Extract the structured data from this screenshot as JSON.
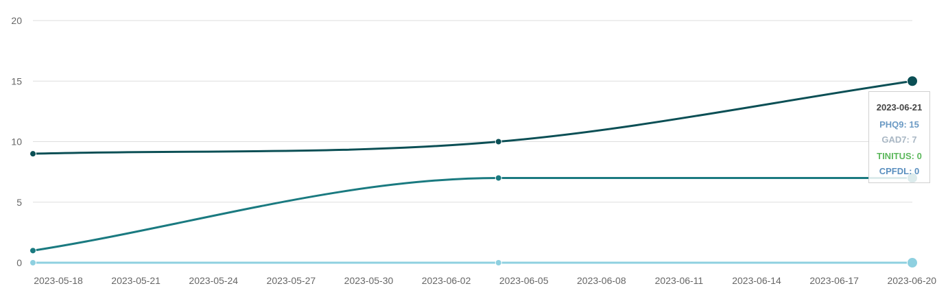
{
  "chart_data": {
    "type": "line",
    "x_ticks": [
      "2023-05-18",
      "2023-05-21",
      "2023-05-24",
      "2023-05-27",
      "2023-05-30",
      "2023-06-02",
      "2023-06-05",
      "2023-06-08",
      "2023-06-11",
      "2023-06-14",
      "2023-06-17",
      "2023-06-20"
    ],
    "y_ticks": [
      "0",
      "5",
      "10",
      "15",
      "20"
    ],
    "ylim": [
      0,
      20
    ],
    "xlim": [
      "2023-05-18",
      "2023-06-21"
    ],
    "grid": true,
    "x": [
      "2023-05-18",
      "2023-06-05",
      "2023-06-21"
    ],
    "series": [
      {
        "name": "PHQ9",
        "values": [
          9,
          10,
          15
        ],
        "color": "#0b4f55"
      },
      {
        "name": "GAD7",
        "values": [
          1,
          7,
          7
        ],
        "color": "#1a7a80"
      },
      {
        "name": "TINITUS",
        "values": [
          0,
          0,
          0
        ],
        "color": "#8ed0e0"
      },
      {
        "name": "CPFDL",
        "values": [
          0,
          0,
          0
        ],
        "color": "#8ed0e0"
      }
    ],
    "tooltip": {
      "date": "2023-06-21",
      "lines": [
        {
          "text": "PHQ9: 15",
          "color": "#6b9ac4"
        },
        {
          "text": "GAD7: 7",
          "color": "#a9b7c4"
        },
        {
          "text": "TINITUS: 0",
          "color": "#5cb85c"
        },
        {
          "text": "CPFDL: 0",
          "color": "#5a8fbf"
        }
      ]
    }
  }
}
